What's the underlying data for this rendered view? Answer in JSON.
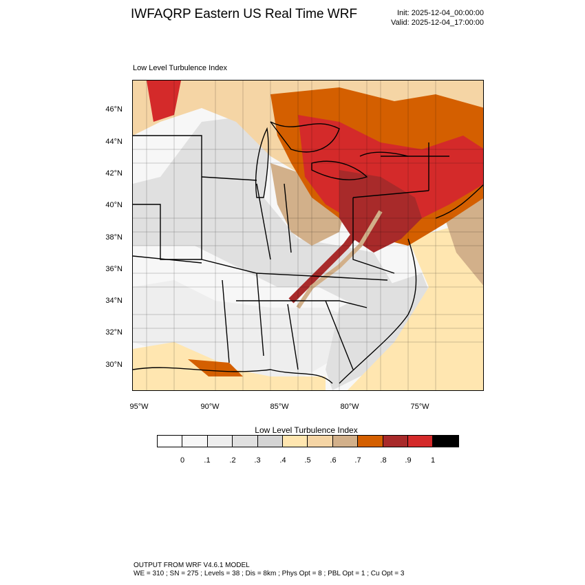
{
  "header": {
    "title": "IWFAQRP Eastern US Real Time WRF",
    "init": "Init: 2025-12-04_00:00:00",
    "valid": "Valid: 2025-12-04_17:00:00"
  },
  "map": {
    "title": "Low Level Turbulence Index",
    "projection": "lambert-conformal",
    "lat_ticks": [
      "46°N",
      "44°N",
      "42°N",
      "40°N",
      "38°N",
      "36°N",
      "34°N",
      "32°N",
      "30°N"
    ],
    "lon_ticks": [
      "95°W",
      "90°W",
      "85°W",
      "80°W",
      "75°W"
    ],
    "boundaries": [
      "state-lines",
      "county-lines",
      "coastlines"
    ]
  },
  "colorbar": {
    "title": "Low Level Turbulence Index",
    "colors": [
      "#ffffff",
      "#f7f7f7",
      "#eeeeee",
      "#e0e0e0",
      "#d4d4d4",
      "#ffe6b0",
      "#f5d5a5",
      "#d2b08a",
      "#d45f00",
      "#a82a2a",
      "#d42a2a",
      "#000000"
    ],
    "labels": [
      "0",
      ".1",
      ".2",
      ".3",
      ".4",
      ".5",
      ".6",
      ".7",
      ".8",
      ".9",
      "1"
    ]
  },
  "footer": {
    "line1": "OUTPUT FROM WRF V4.6.1 MODEL",
    "line2": "WE = 310 ; SN = 275 ; Levels = 38 ; Dis = 8km ; Phys Opt = 8 ; PBL Opt = 1 ; Cu Opt = 3"
  }
}
